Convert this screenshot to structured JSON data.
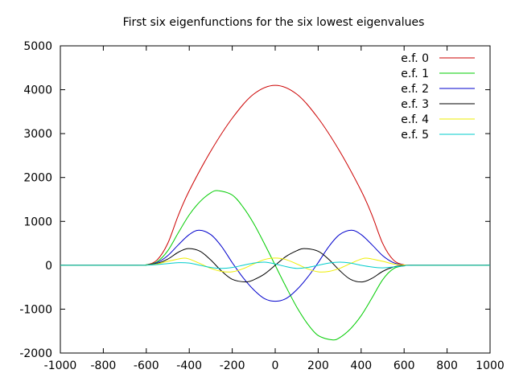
{
  "chart_data": {
    "type": "line",
    "title": "First six eigenfunctions for the six lowest eigenvalues",
    "xlabel": "",
    "ylabel": "",
    "xlim": [
      -1000,
      1000
    ],
    "ylim": [
      -2000,
      5000
    ],
    "grid": false,
    "legend_position": "top-right",
    "xticks": [
      -1000,
      -800,
      -600,
      -400,
      -200,
      0,
      200,
      400,
      600,
      800,
      1000
    ],
    "yticks": [
      -2000,
      -1000,
      0,
      1000,
      2000,
      3000,
      4000,
      5000
    ],
    "series": [
      {
        "name": "e.f. 0",
        "color": "#cc0000",
        "x": [
          -1000,
          -650,
          -600,
          -550,
          -500,
          -450,
          -400,
          -300,
          -200,
          -100,
          0,
          100,
          200,
          300,
          400,
          450,
          500,
          550,
          600,
          650,
          1000
        ],
        "y": [
          0,
          0,
          10,
          120,
          500,
          1150,
          1700,
          2600,
          3350,
          3900,
          4100,
          3900,
          3350,
          2600,
          1700,
          1150,
          500,
          120,
          10,
          0,
          0
        ]
      },
      {
        "name": "e.f. 1",
        "color": "#00cc00",
        "x": [
          -1000,
          -650,
          -600,
          -550,
          -500,
          -450,
          -400,
          -350,
          -300,
          -265,
          -200,
          -150,
          -100,
          -50,
          0,
          50,
          100,
          150,
          200,
          265,
          300,
          350,
          400,
          450,
          500,
          550,
          600,
          650,
          1000
        ],
        "y": [
          0,
          0,
          10,
          80,
          330,
          750,
          1150,
          1450,
          1650,
          1700,
          1600,
          1330,
          950,
          490,
          0,
          -490,
          -950,
          -1330,
          -1600,
          -1700,
          -1650,
          -1450,
          -1150,
          -750,
          -330,
          -80,
          -10,
          0,
          0
        ]
      },
      {
        "name": "e.f. 2",
        "color": "#0000cc",
        "x": [
          -1000,
          -650,
          -600,
          -550,
          -500,
          -450,
          -400,
          -355,
          -300,
          -250,
          -200,
          -150,
          -100,
          -50,
          0,
          50,
          100,
          150,
          200,
          250,
          300,
          355,
          400,
          450,
          500,
          550,
          600,
          650,
          1000
        ],
        "y": [
          0,
          0,
          5,
          60,
          220,
          470,
          700,
          800,
          700,
          430,
          60,
          -280,
          -560,
          -760,
          -820,
          -760,
          -560,
          -280,
          60,
          430,
          700,
          800,
          700,
          470,
          220,
          60,
          5,
          0,
          0
        ]
      },
      {
        "name": "e.f. 3",
        "color": "#000000",
        "x": [
          -1000,
          -650,
          -600,
          -550,
          -500,
          -450,
          -405,
          -350,
          -300,
          -250,
          -200,
          -135,
          -100,
          -50,
          0,
          50,
          100,
          135,
          200,
          250,
          300,
          350,
          405,
          450,
          500,
          550,
          600,
          650,
          1000
        ],
        "y": [
          0,
          0,
          5,
          40,
          140,
          300,
          380,
          320,
          120,
          -130,
          -320,
          -380,
          -330,
          -200,
          0,
          200,
          330,
          380,
          320,
          130,
          -120,
          -320,
          -380,
          -300,
          -140,
          -40,
          -5,
          0,
          0
        ]
      },
      {
        "name": "e.f. 4",
        "color": "#eeee00",
        "x": [
          -1000,
          -650,
          -600,
          -550,
          -500,
          -430,
          -400,
          -350,
          -300,
          -250,
          -200,
          -150,
          -100,
          -50,
          0,
          50,
          100,
          150,
          200,
          250,
          300,
          350,
          400,
          430,
          500,
          550,
          600,
          650,
          1000
        ],
        "y": [
          0,
          0,
          5,
          30,
          90,
          160,
          140,
          40,
          -70,
          -140,
          -150,
          -80,
          30,
          130,
          165,
          130,
          30,
          -80,
          -150,
          -140,
          -70,
          40,
          140,
          160,
          90,
          30,
          5,
          0,
          0
        ]
      },
      {
        "name": "e.f. 5",
        "color": "#00cccc",
        "x": [
          -1000,
          -650,
          -600,
          -550,
          -500,
          -450,
          -400,
          -350,
          -300,
          -250,
          -200,
          -150,
          -100,
          -50,
          0,
          50,
          100,
          150,
          200,
          250,
          300,
          350,
          400,
          450,
          500,
          550,
          600,
          650,
          1000
        ],
        "y": [
          0,
          0,
          3,
          15,
          40,
          60,
          50,
          0,
          -50,
          -70,
          -50,
          0,
          50,
          70,
          30,
          -30,
          -70,
          -50,
          0,
          50,
          70,
          50,
          0,
          -40,
          -60,
          -40,
          -15,
          0,
          0
        ]
      }
    ]
  }
}
